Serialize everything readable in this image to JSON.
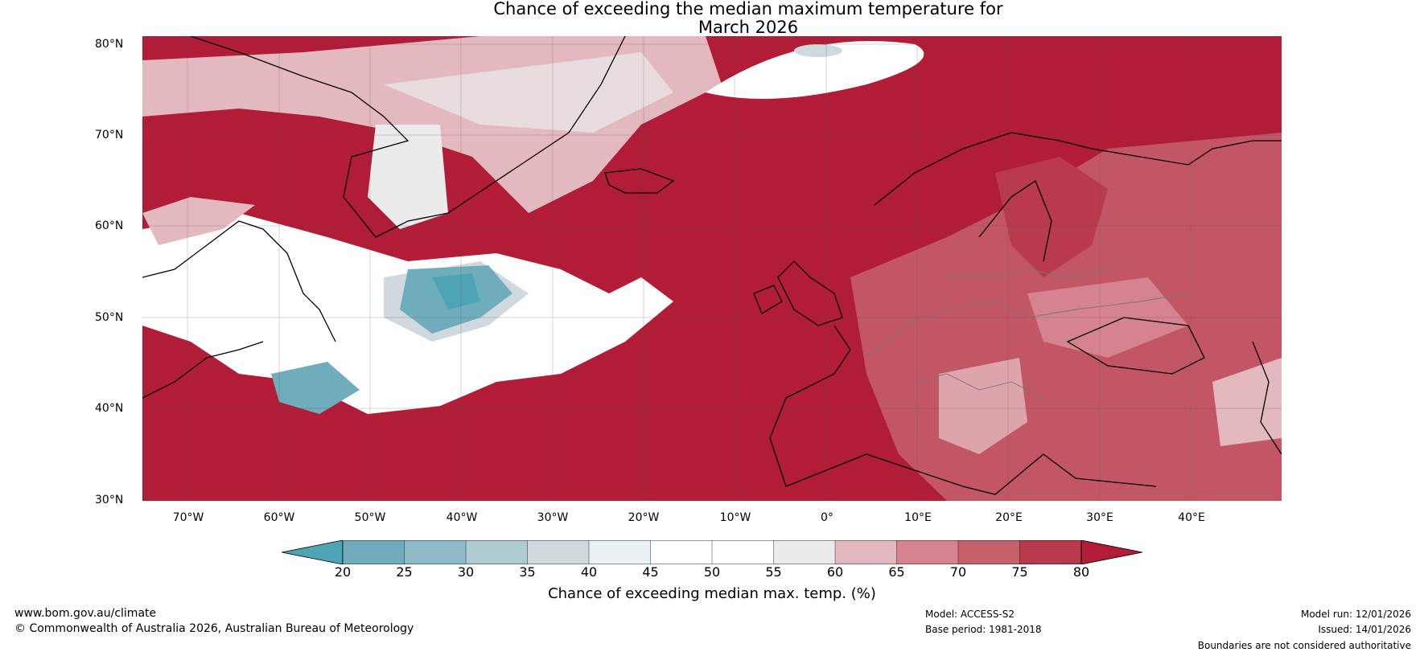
{
  "title": {
    "line1": "Chance of exceeding the median maximum temperature for",
    "line2": "March 2026"
  },
  "lat_labels": [
    "80°N",
    "70°N",
    "60°N",
    "50°N",
    "40°N",
    "30°N"
  ],
  "lon_labels": [
    "70°W",
    "60°W",
    "50°W",
    "40°W",
    "30°W",
    "20°W",
    "10°W",
    "0°",
    "10°E",
    "20°E",
    "30°E",
    "40°E"
  ],
  "colorbar": {
    "ticks": [
      "20",
      "25",
      "30",
      "35",
      "40",
      "45",
      "50",
      "55",
      "60",
      "65",
      "70",
      "75",
      "80"
    ],
    "colors": [
      "#4ea3b5",
      "#6fadbd",
      "#8ebbc7",
      "#adcbd0",
      "#cfd9de",
      "#eaf1f3",
      "#ffffff",
      "#ffffff",
      "#ebebeb",
      "#e3b8be",
      "#d4838f",
      "#c6606d",
      "#b83a4b",
      "#b11c37"
    ],
    "label": "Chance of exceeding median max. temp. (%)"
  },
  "palette": {
    "high": "#b11c37",
    "mid_high": "#c6606d",
    "light_red": "#e3b8be",
    "neutral": "#ebebeb",
    "low": "#4ea3b5",
    "mid_low": "#8ebbc7"
  },
  "footer": {
    "url": "www.bom.gov.au/climate",
    "copyright": "© Commonwealth of Australia 2026, Australian Bureau of Meteorology",
    "model": "Model: ACCESS-S2",
    "base_period": "Base period: 1981-2018",
    "model_run": "Model run: 12/01/2026",
    "issued": "Issued: 14/01/2026",
    "disclaimer": "Boundaries are not considered authoritative"
  }
}
